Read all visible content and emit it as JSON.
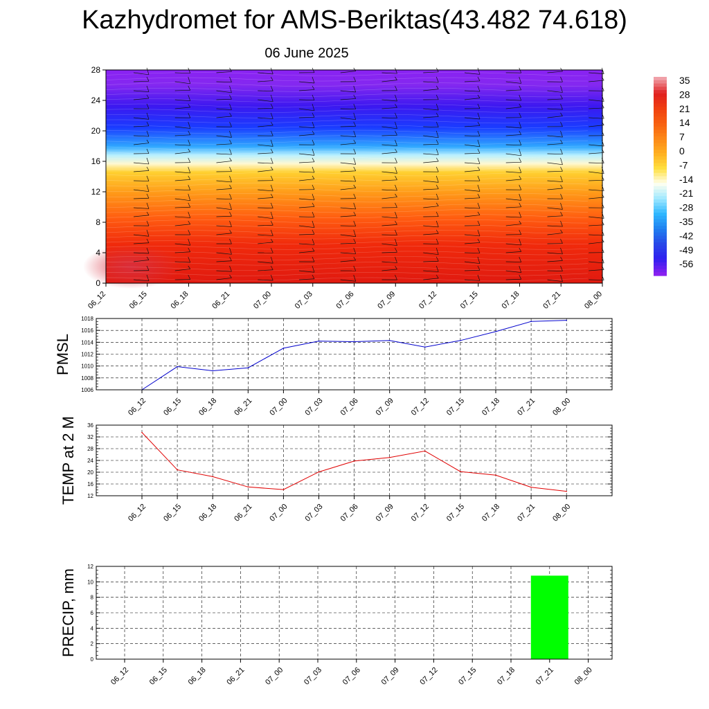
{
  "title": "Kazhydromet for AMS-Beriktas(43.482 74.618)",
  "subtitle": "06 June 2025",
  "colors": {
    "pmsl_line": "#0000cc",
    "temp_line": "#e00000",
    "precip_bar": "#00ff00",
    "grid": "#000000"
  },
  "chart_data": [
    {
      "type": "heatmap",
      "name": "cross-section",
      "x": [
        "06_12",
        "06_15",
        "06_18",
        "06_21",
        "07_00",
        "07_03",
        "07_06",
        "07_09",
        "07_12",
        "07_15",
        "07_18",
        "07_21",
        "08_00"
      ],
      "y_ticks": [
        0,
        4,
        8,
        12,
        16,
        20,
        24,
        28
      ],
      "ylim": [
        0,
        28
      ],
      "colorbar_labels": [
        "35",
        "28",
        "21",
        "14",
        "7",
        "0",
        "-7",
        "-14",
        "-21",
        "-28",
        "-35",
        "-42",
        "-49",
        "-56"
      ],
      "colorbar_colors": [
        "#f0a0a8",
        "#e02020",
        "#f04010",
        "#f86010",
        "#fc8818",
        "#ffb020",
        "#ffe040",
        "#fffff0",
        "#a0e8ff",
        "#30b8ff",
        "#2080f0",
        "#2848e8",
        "#3020f0",
        "#8820f0"
      ],
      "wind_barbs": "present"
    },
    {
      "type": "line",
      "name": "pmsl",
      "ylabel": "PMSL",
      "x": [
        "06_12",
        "06_15",
        "06_18",
        "06_21",
        "07_00",
        "07_03",
        "07_06",
        "07_09",
        "07_12",
        "07_15",
        "07_18",
        "07_21",
        "08_00"
      ],
      "y_ticks": [
        1006,
        1008,
        1010,
        1012,
        1014,
        1016,
        1018
      ],
      "ylim": [
        1006,
        1018
      ],
      "values": [
        1006.0,
        1009.9,
        1009.2,
        1009.7,
        1013.0,
        1014.2,
        1014.1,
        1014.3,
        1013.2,
        1014.3,
        1015.8,
        1017.5,
        1017.7
      ],
      "grid": true
    },
    {
      "type": "line",
      "name": "temp",
      "ylabel": "TEMP at 2 M",
      "x": [
        "06_12",
        "06_15",
        "06_18",
        "06_21",
        "07_00",
        "07_03",
        "07_06",
        "07_09",
        "07_12",
        "07_15",
        "07_18",
        "07_21",
        "08_00"
      ],
      "y_ticks": [
        12,
        16,
        20,
        24,
        28,
        32,
        36
      ],
      "ylim": [
        12,
        36
      ],
      "values": [
        33.5,
        20.8,
        18.5,
        15.0,
        14.1,
        20.1,
        23.8,
        25.0,
        27.2,
        20.2,
        19.0,
        14.9,
        13.5
      ],
      "grid": true
    },
    {
      "type": "bar",
      "name": "precip",
      "ylabel": "PRECIP, mm",
      "x": [
        "06_12",
        "06_15",
        "06_18",
        "06_21",
        "07_00",
        "07_03",
        "07_06",
        "07_09",
        "07_12",
        "07_15",
        "07_18",
        "07_21",
        "08_00"
      ],
      "y_ticks": [
        0,
        2,
        4,
        6,
        8,
        10,
        12
      ],
      "ylim": [
        0,
        12
      ],
      "values": [
        0,
        0,
        0,
        0,
        0,
        0,
        0,
        0,
        0,
        0,
        0,
        10.8,
        0
      ],
      "grid": true
    }
  ]
}
